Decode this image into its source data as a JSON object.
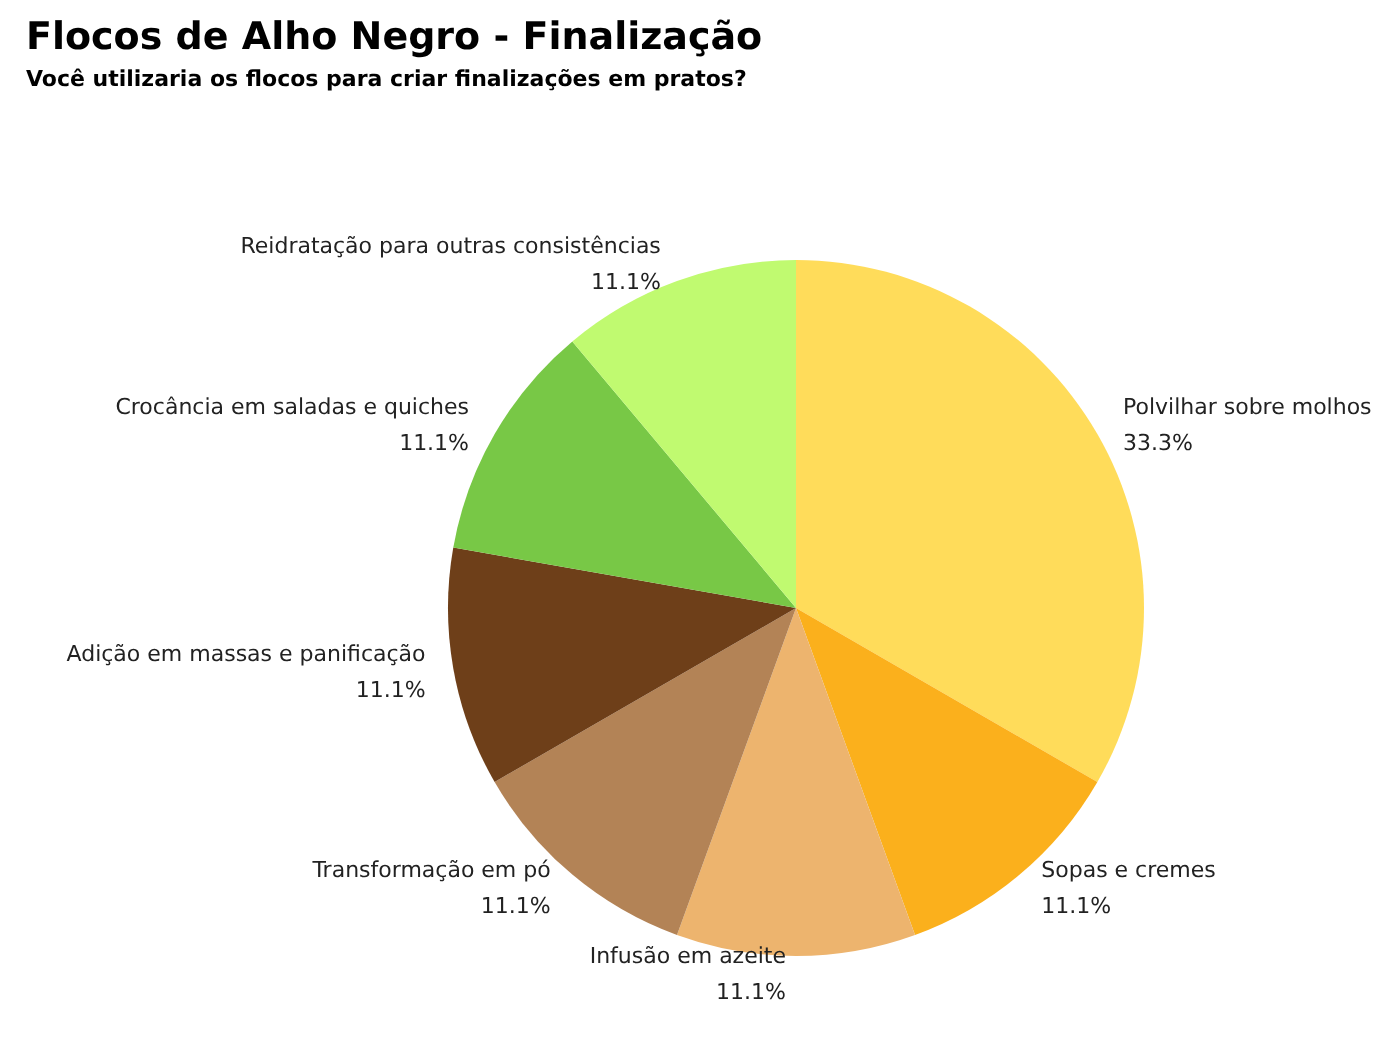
{
  "chart_data": {
    "type": "pie",
    "title": "Flocos de Alho Negro - Finalização",
    "subtitle": "Você utilizaria os flocos para criar finalizações em pratos?",
    "categories": [
      "Polvilhar sobre molhos",
      "Sopas e cremes",
      "Infusão em azeite",
      "Transformação em pó",
      "Adição em massas e panificação",
      "Crocância em saladas e quiches",
      "Reidratação para outras consistências"
    ],
    "values": [
      33.3,
      11.1,
      11.1,
      11.1,
      11.1,
      11.1,
      11.1
    ],
    "value_labels": [
      "33.3%",
      "11.1%",
      "11.1%",
      "11.1%",
      "11.1%",
      "11.1%",
      "11.1%"
    ],
    "colors": [
      "#ffdc5a",
      "#fbb01c",
      "#edb46e",
      "#b38356",
      "#6e3f19",
      "#78c846",
      "#c0fa70"
    ],
    "legend": false
  }
}
